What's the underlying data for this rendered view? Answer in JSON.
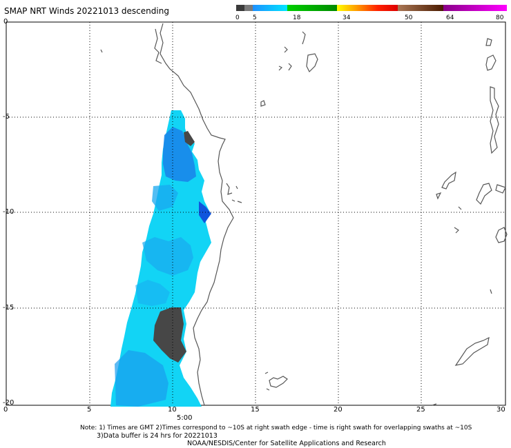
{
  "header": {
    "title": "SMAP NRT Winds  20221013 descending"
  },
  "colorbar": {
    "labels": [
      "0",
      "5",
      "18",
      "34",
      "50",
      "64",
      "80"
    ],
    "colors": [
      "#3a3a3a",
      "#6a6a6a",
      "#1e90ff",
      "#00bfff",
      "#00ff00",
      "#00a000",
      "#ffff00",
      "#ff9900",
      "#ff3300",
      "#dd0000",
      "#996644",
      "#552200",
      "#aa00aa",
      "#ff00ff"
    ]
  },
  "axes": {
    "x_ticks": [
      "0",
      "5",
      "10",
      "15",
      "20",
      "25",
      "30"
    ],
    "y_ticks": [
      "0",
      "-5",
      "-10",
      "-15",
      "-20"
    ],
    "time_label": "5:00"
  },
  "notes": {
    "line1": "Note: 1) Times are GMT 2)Times correspond to ~10S at right swath edge - time is right swath for overlapping swaths at ~10S",
    "line2": "3)Data buffer is 24 hrs for 20221013",
    "line3": "NOAA/NESDIS/Center for Satellite Applications and Research"
  },
  "style": {
    "wind_light": "#12d4f5",
    "wind_mid": "#1aa8ef",
    "wind_dark": "#1060e0",
    "no_data": "#474747",
    "coast": "#555555"
  }
}
